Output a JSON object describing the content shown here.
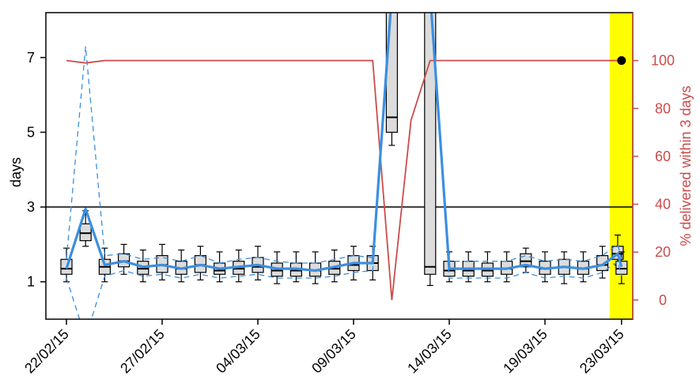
{
  "chart_data": {
    "type": "boxplot",
    "xlabel": "",
    "ylabel": "days",
    "y2label": "% delivered within 3 days",
    "ylim": [
      0,
      8.2
    ],
    "y2lim": [
      -8,
      120
    ],
    "yticks": [
      1,
      3,
      5,
      7
    ],
    "y2ticks": [
      0,
      20,
      40,
      60,
      80,
      100
    ],
    "threshold_days": 3,
    "x_tick_labels": [
      "22/02/15",
      "27/02/15",
      "04/03/15",
      "09/03/15",
      "14/03/15",
      "19/03/15",
      "23/03/15"
    ],
    "x_tick_days": [
      0,
      5,
      10,
      15,
      20,
      25,
      29
    ],
    "highlight_day": 29,
    "colors": {
      "median_line": "#3b8fe0",
      "percent_line": "#cc4b4b",
      "quantile_dashed": "#3b8fe0",
      "box_fill": "#dcdcdc",
      "highlight": "#ffff00",
      "right_axis": "#cc4b4b"
    },
    "days": [
      0,
      1,
      2,
      3,
      4,
      5,
      6,
      7,
      8,
      9,
      10,
      11,
      12,
      13,
      14,
      15,
      16,
      17,
      18,
      19,
      20,
      21,
      22,
      23,
      24,
      25,
      26,
      27,
      28,
      29
    ],
    "boxes": [
      {
        "day": 0,
        "low": 1.0,
        "q1": 1.2,
        "median": 1.35,
        "q3": 1.6,
        "high": 1.9
      },
      {
        "day": 1,
        "low": 1.95,
        "q1": 2.1,
        "median": 2.3,
        "q3": 2.55,
        "high": 2.9
      },
      {
        "day": 2,
        "low": 1.0,
        "q1": 1.2,
        "median": 1.4,
        "q3": 1.6,
        "high": 1.9
      },
      {
        "day": 3,
        "low": 1.2,
        "q1": 1.4,
        "median": 1.55,
        "q3": 1.75,
        "high": 2.0
      },
      {
        "day": 4,
        "low": 1.0,
        "q1": 1.2,
        "median": 1.35,
        "q3": 1.55,
        "high": 1.85
      },
      {
        "day": 5,
        "low": 1.05,
        "q1": 1.25,
        "median": 1.45,
        "q3": 1.7,
        "high": 2.0
      },
      {
        "day": 6,
        "low": 1.0,
        "q1": 1.2,
        "median": 1.35,
        "q3": 1.55,
        "high": 1.85
      },
      {
        "day": 7,
        "low": 1.05,
        "q1": 1.25,
        "median": 1.45,
        "q3": 1.7,
        "high": 1.95
      },
      {
        "day": 8,
        "low": 1.0,
        "q1": 1.2,
        "median": 1.3,
        "q3": 1.5,
        "high": 1.8
      },
      {
        "day": 9,
        "low": 1.0,
        "q1": 1.2,
        "median": 1.35,
        "q3": 1.55,
        "high": 1.85
      },
      {
        "day": 10,
        "low": 1.05,
        "q1": 1.25,
        "median": 1.4,
        "q3": 1.65,
        "high": 1.95
      },
      {
        "day": 11,
        "low": 0.95,
        "q1": 1.15,
        "median": 1.3,
        "q3": 1.5,
        "high": 1.8
      },
      {
        "day": 12,
        "low": 1.0,
        "q1": 1.15,
        "median": 1.3,
        "q3": 1.5,
        "high": 1.8
      },
      {
        "day": 13,
        "low": 0.95,
        "q1": 1.15,
        "median": 1.3,
        "q3": 1.5,
        "high": 1.8
      },
      {
        "day": 14,
        "low": 1.0,
        "q1": 1.2,
        "median": 1.35,
        "q3": 1.55,
        "high": 1.85
      },
      {
        "day": 15,
        "low": 1.05,
        "q1": 1.3,
        "median": 1.45,
        "q3": 1.7,
        "high": 1.95
      },
      {
        "day": 16,
        "low": 1.05,
        "q1": 1.3,
        "median": 1.5,
        "q3": 1.7,
        "high": 1.95
      },
      {
        "day": 17,
        "low": 4.65,
        "q1": 5.0,
        "median": 5.4,
        "q3": 8.6,
        "high": 8.6
      },
      {
        "day": 19,
        "low": 0.9,
        "q1": 1.2,
        "median": 1.4,
        "q3": 8.6,
        "high": 8.6
      },
      {
        "day": 20,
        "low": 1.0,
        "q1": 1.15,
        "median": 1.3,
        "q3": 1.55,
        "high": 1.8
      },
      {
        "day": 21,
        "low": 1.0,
        "q1": 1.15,
        "median": 1.3,
        "q3": 1.55,
        "high": 1.8
      },
      {
        "day": 22,
        "low": 1.0,
        "q1": 1.15,
        "median": 1.3,
        "q3": 1.5,
        "high": 1.8
      },
      {
        "day": 23,
        "low": 1.0,
        "q1": 1.2,
        "median": 1.35,
        "q3": 1.55,
        "high": 1.8
      },
      {
        "day": 24,
        "low": 1.25,
        "q1": 1.4,
        "median": 1.55,
        "q3": 1.75,
        "high": 1.9
      },
      {
        "day": 25,
        "low": 1.0,
        "q1": 1.2,
        "median": 1.35,
        "q3": 1.55,
        "high": 1.8
      },
      {
        "day": 26,
        "low": 0.95,
        "q1": 1.2,
        "median": 1.4,
        "q3": 1.6,
        "high": 1.8
      },
      {
        "day": 27,
        "low": 1.0,
        "q1": 1.2,
        "median": 1.35,
        "q3": 1.55,
        "high": 1.8
      },
      {
        "day": 28,
        "low": 1.1,
        "q1": 1.3,
        "median": 1.45,
        "q3": 1.7,
        "high": 1.95
      },
      {
        "day": 28.8,
        "low": 1.45,
        "q1": 1.6,
        "median": 1.75,
        "q3": 1.95,
        "high": 2.25
      },
      {
        "day": 29,
        "low": 0.95,
        "q1": 1.2,
        "median": 1.35,
        "q3": 1.55,
        "high": 1.8
      }
    ],
    "median_series": [
      [
        0,
        1.35
      ],
      [
        1,
        2.95
      ],
      [
        2,
        1.45
      ],
      [
        3,
        1.55
      ],
      [
        4,
        1.4
      ],
      [
        5,
        1.45
      ],
      [
        6,
        1.35
      ],
      [
        7,
        1.45
      ],
      [
        8,
        1.35
      ],
      [
        9,
        1.4
      ],
      [
        10,
        1.45
      ],
      [
        11,
        1.35
      ],
      [
        12,
        1.35
      ],
      [
        13,
        1.3
      ],
      [
        14,
        1.4
      ],
      [
        15,
        1.5
      ],
      [
        16,
        1.5
      ],
      [
        17,
        8.7
      ],
      [
        19,
        8.7
      ],
      [
        20,
        1.35
      ],
      [
        21,
        1.35
      ],
      [
        22,
        1.35
      ],
      [
        23,
        1.35
      ],
      [
        24,
        1.45
      ],
      [
        25,
        1.35
      ],
      [
        26,
        1.4
      ],
      [
        27,
        1.35
      ],
      [
        28,
        1.45
      ],
      [
        28.8,
        1.75
      ],
      [
        29,
        1.4
      ]
    ],
    "quantile_upper_series": [
      [
        0,
        1.6
      ],
      [
        1,
        7.3
      ],
      [
        2,
        1.7
      ],
      [
        3,
        1.75
      ],
      [
        4,
        1.6
      ],
      [
        5,
        1.65
      ],
      [
        6,
        1.55
      ],
      [
        7,
        1.7
      ],
      [
        8,
        1.5
      ],
      [
        9,
        1.6
      ],
      [
        10,
        1.65
      ],
      [
        11,
        1.55
      ],
      [
        12,
        1.5
      ],
      [
        13,
        1.5
      ],
      [
        14,
        1.6
      ],
      [
        15,
        1.7
      ],
      [
        16,
        1.65
      ],
      [
        17,
        8.8
      ],
      [
        19,
        8.8
      ],
      [
        20,
        1.55
      ],
      [
        21,
        1.55
      ],
      [
        22,
        1.55
      ],
      [
        23,
        1.55
      ],
      [
        24,
        1.7
      ],
      [
        25,
        1.55
      ],
      [
        26,
        1.6
      ],
      [
        27,
        1.55
      ],
      [
        28,
        1.7
      ],
      [
        28.8,
        2.0
      ],
      [
        29,
        1.6
      ]
    ],
    "quantile_lower_series": [
      [
        0,
        1.1
      ],
      [
        1,
        -0.5
      ],
      [
        2,
        1.15
      ],
      [
        3,
        1.3
      ],
      [
        4,
        1.15
      ],
      [
        5,
        1.2
      ],
      [
        6,
        1.1
      ],
      [
        7,
        1.2
      ],
      [
        8,
        1.1
      ],
      [
        9,
        1.15
      ],
      [
        10,
        1.2
      ],
      [
        11,
        1.1
      ],
      [
        12,
        1.1
      ],
      [
        13,
        1.1
      ],
      [
        14,
        1.15
      ],
      [
        15,
        1.25
      ],
      [
        16,
        1.3
      ],
      [
        17,
        8.8
      ],
      [
        19,
        8.8
      ],
      [
        20,
        1.1
      ],
      [
        21,
        1.1
      ],
      [
        22,
        1.1
      ],
      [
        23,
        1.1
      ],
      [
        24,
        1.25
      ],
      [
        25,
        1.1
      ],
      [
        26,
        1.15
      ],
      [
        27,
        1.1
      ],
      [
        28,
        1.25
      ],
      [
        28.8,
        1.55
      ],
      [
        29,
        1.15
      ]
    ],
    "percent_series": [
      [
        0,
        100
      ],
      [
        1,
        99
      ],
      [
        2,
        100
      ],
      [
        3,
        100
      ],
      [
        4,
        100
      ],
      [
        5,
        100
      ],
      [
        6,
        100
      ],
      [
        7,
        100
      ],
      [
        8,
        100
      ],
      [
        9,
        100
      ],
      [
        10,
        100
      ],
      [
        11,
        100
      ],
      [
        12,
        100
      ],
      [
        13,
        100
      ],
      [
        14,
        100
      ],
      [
        15,
        100
      ],
      [
        16,
        100
      ],
      [
        17,
        0
      ],
      [
        18,
        75
      ],
      [
        19,
        100
      ],
      [
        20,
        100
      ],
      [
        21,
        100
      ],
      [
        22,
        100
      ],
      [
        23,
        100
      ],
      [
        24,
        100
      ],
      [
        25,
        100
      ],
      [
        26,
        100
      ],
      [
        27,
        100
      ],
      [
        28,
        100
      ],
      [
        29,
        100
      ]
    ],
    "highlight_point": {
      "day": 29,
      "percent": 100
    }
  }
}
